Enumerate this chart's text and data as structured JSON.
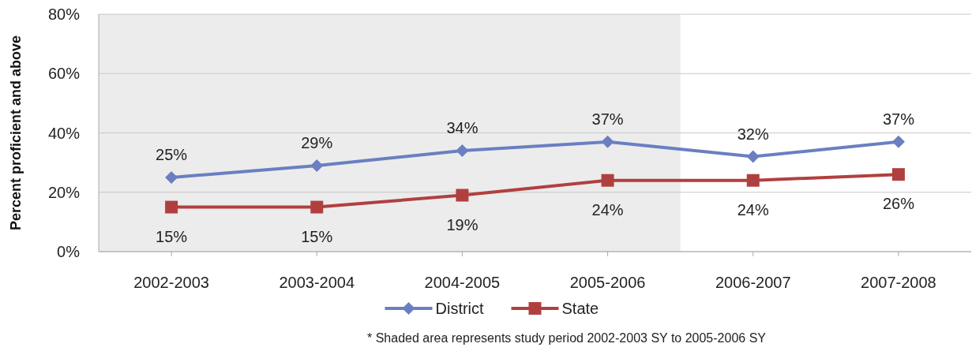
{
  "chart_data": {
    "type": "line",
    "categories": [
      "2002-2003",
      "2003-2004",
      "2004-2005",
      "2005-2006",
      "2006-2007",
      "2007-2008"
    ],
    "series": [
      {
        "name": "District",
        "color": "#6a7fc1",
        "marker": "diamond",
        "values": [
          25,
          29,
          34,
          37,
          32,
          37
        ],
        "value_labels": [
          "25%",
          "29%",
          "34%",
          "37%",
          "32%",
          "37%"
        ]
      },
      {
        "name": "State",
        "color": "#b0403f",
        "marker": "square",
        "values": [
          15,
          15,
          19,
          24,
          24,
          26
        ],
        "value_labels": [
          "15%",
          "15%",
          "19%",
          "24%",
          "24%",
          "26%"
        ]
      }
    ],
    "ylabel": "Percent proficient and above",
    "ylim": [
      0,
      80
    ],
    "yticks": [
      {
        "value": 0,
        "label": "0%"
      },
      {
        "value": 20,
        "label": "20%"
      },
      {
        "value": 40,
        "label": "40%"
      },
      {
        "value": 60,
        "label": "60%"
      },
      {
        "value": 80,
        "label": "80%"
      }
    ],
    "grid": "y",
    "legend": "bottom",
    "bands": [
      {
        "axis": "x",
        "from": "2002-2003",
        "to": "2005-2006",
        "color": "#ececec"
      }
    ],
    "annotations": [
      "* Shaded area represents study period 2002-2003 SY to 2005-2006 SY"
    ]
  }
}
